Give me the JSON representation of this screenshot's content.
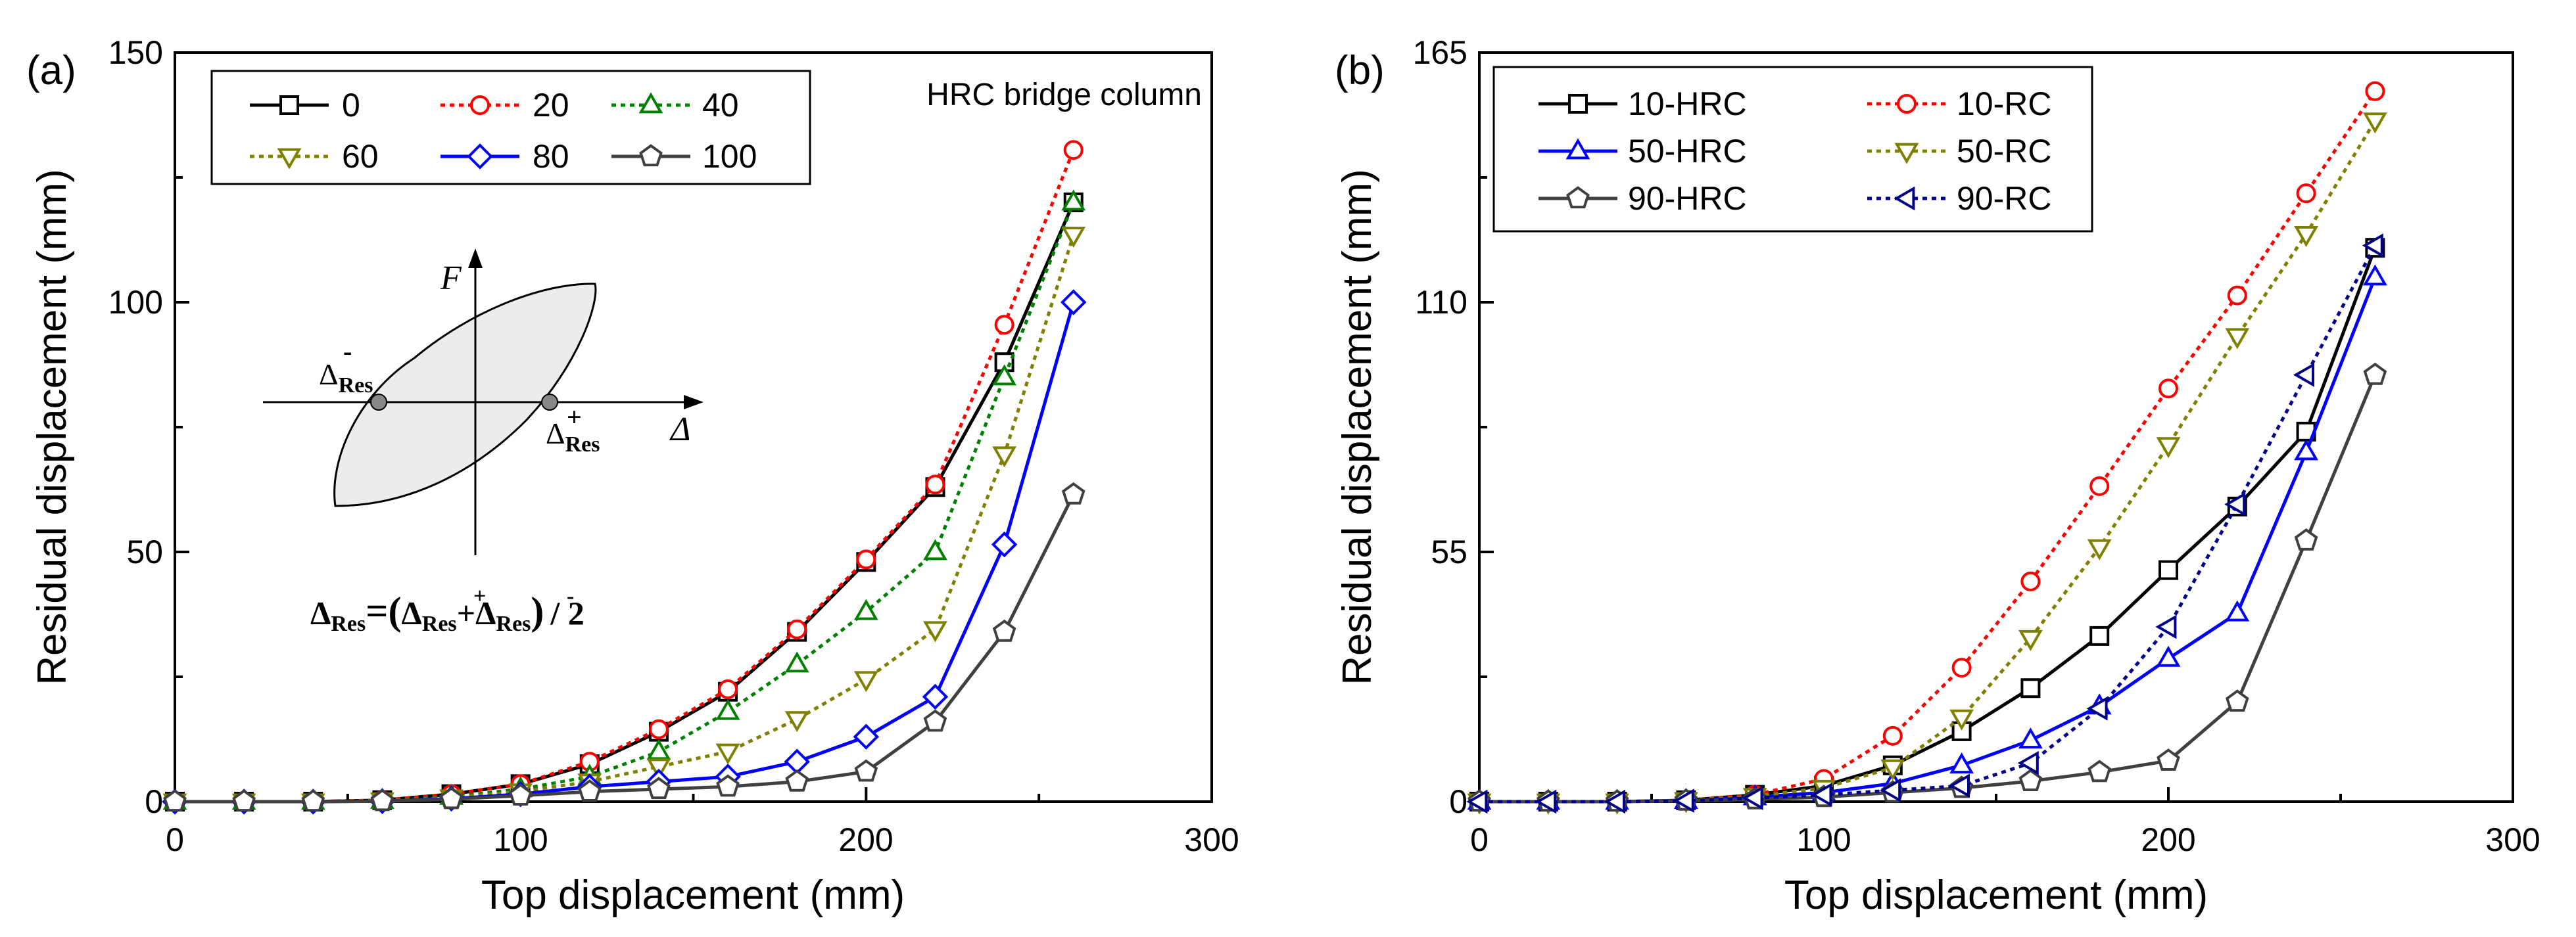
{
  "chart_data": [
    {
      "type": "line",
      "panel_label": "(a)",
      "annotation": "HRC bridge column",
      "xlabel": "Top displacement (mm)",
      "ylabel": "Residual displacement (mm)",
      "xlim": [
        0,
        300
      ],
      "ylim": [
        0,
        150
      ],
      "xticks": [
        "0",
        "100",
        "200",
        "300"
      ],
      "yticks": [
        "0",
        "50",
        "100",
        "150"
      ],
      "legend_position": "top-left",
      "legend_columns": 3,
      "grid": false,
      "x": [
        0,
        20,
        40,
        60,
        80,
        100,
        120,
        140,
        160,
        180,
        200,
        220,
        240,
        260
      ],
      "series": [
        {
          "name": "0",
          "color": "#000000",
          "marker": "square",
          "dash": "solid",
          "values": [
            0,
            0,
            0,
            0.3,
            1.5,
            3.5,
            7.5,
            14,
            22,
            34,
            48,
            63,
            88,
            120
          ]
        },
        {
          "name": "20",
          "color": "#ff0000",
          "marker": "circle",
          "dash": "dotted",
          "values": [
            0,
            0,
            0,
            0.3,
            1.5,
            3.5,
            8,
            14.5,
            22.5,
            34.5,
            48.5,
            63.5,
            95.5,
            130.5
          ]
        },
        {
          "name": "40",
          "color": "#008000",
          "marker": "triangle-up",
          "dash": "dotted",
          "values": [
            0,
            0,
            0,
            0.2,
            1,
            2.5,
            5,
            10,
            18,
            27.5,
            38,
            50,
            85,
            120
          ]
        },
        {
          "name": "60",
          "color": "#808000",
          "marker": "triangle-down",
          "dash": "dotted",
          "values": [
            0,
            0,
            0,
            0.2,
            0.8,
            2,
            4,
            7,
            10,
            16.5,
            24.5,
            34.5,
            69.5,
            113.5
          ]
        },
        {
          "name": "80",
          "color": "#0000ff",
          "marker": "diamond",
          "dash": "solid",
          "values": [
            0,
            0,
            0,
            0.1,
            0.6,
            1.5,
            3,
            4,
            5,
            8,
            13,
            21,
            51.5,
            100
          ]
        },
        {
          "name": "100",
          "color": "#404040",
          "marker": "pentagon",
          "dash": "solid",
          "values": [
            0,
            0,
            0,
            0.1,
            0.5,
            1.2,
            2,
            2.5,
            3,
            4,
            6,
            16,
            34,
            61.5
          ]
        }
      ],
      "inset": {
        "force_label": "F",
        "disp_label": "Δ",
        "neg_label": "Δ",
        "neg_sup": "-",
        "pos_label": "Δ",
        "pos_sup": "+",
        "sub": "Res",
        "formula_lhs": "Δ",
        "formula_parts": [
          "=(",
          "Δ",
          "+",
          "Δ",
          ")",
          "/ 2"
        ]
      }
    },
    {
      "type": "line",
      "panel_label": "(b)",
      "xlabel": "Top displacement (mm)",
      "ylabel": "Residual displacement (mm)",
      "xlim": [
        0,
        300
      ],
      "ylim": [
        0,
        165
      ],
      "xticks": [
        "0",
        "100",
        "200",
        "300"
      ],
      "yticks": [
        "0",
        "55",
        "110",
        "165"
      ],
      "legend_position": "top-left",
      "legend_columns": 2,
      "grid": false,
      "x": [
        0,
        20,
        40,
        60,
        80,
        100,
        120,
        140,
        160,
        180,
        200,
        220,
        240,
        260
      ],
      "series": [
        {
          "name": "10-HRC",
          "color": "#000000",
          "marker": "square",
          "dash": "solid",
          "values": [
            0,
            0,
            0,
            0.3,
            1.5,
            3.5,
            8,
            15.5,
            25,
            36.5,
            51,
            65,
            81.5,
            122
          ]
        },
        {
          "name": "10-RC",
          "color": "#ff0000",
          "marker": "circle",
          "dash": "dotted",
          "values": [
            0,
            0,
            0,
            0.3,
            1.5,
            5,
            14.5,
            29.5,
            48.5,
            69.5,
            91,
            111.5,
            134,
            156.5
          ]
        },
        {
          "name": "50-HRC",
          "color": "#0000ff",
          "marker": "triangle-up",
          "dash": "solid",
          "values": [
            0,
            0,
            0,
            0.2,
            1,
            2,
            4,
            8,
            13.5,
            21,
            31.5,
            41.5,
            77,
            115.5
          ]
        },
        {
          "name": "50-RC",
          "color": "#808000",
          "marker": "triangle-down",
          "dash": "dotted",
          "values": [
            0,
            0,
            0,
            0.3,
            1.2,
            3,
            7.5,
            18.5,
            36,
            56,
            78.5,
            102.5,
            125,
            150
          ]
        },
        {
          "name": "90-HRC",
          "color": "#404040",
          "marker": "pentagon",
          "dash": "solid",
          "values": [
            0,
            0,
            0,
            0.2,
            0.5,
            1,
            2,
            3,
            4.5,
            6.5,
            9,
            22,
            57.5,
            94
          ]
        },
        {
          "name": "90-RC",
          "color": "#00008b",
          "marker": "triangle-left",
          "dash": "dotted",
          "values": [
            0,
            0,
            0,
            0.2,
            0.8,
            1.5,
            2.5,
            3.5,
            8.5,
            20.5,
            38.5,
            65.5,
            94,
            122.5
          ]
        }
      ]
    }
  ]
}
